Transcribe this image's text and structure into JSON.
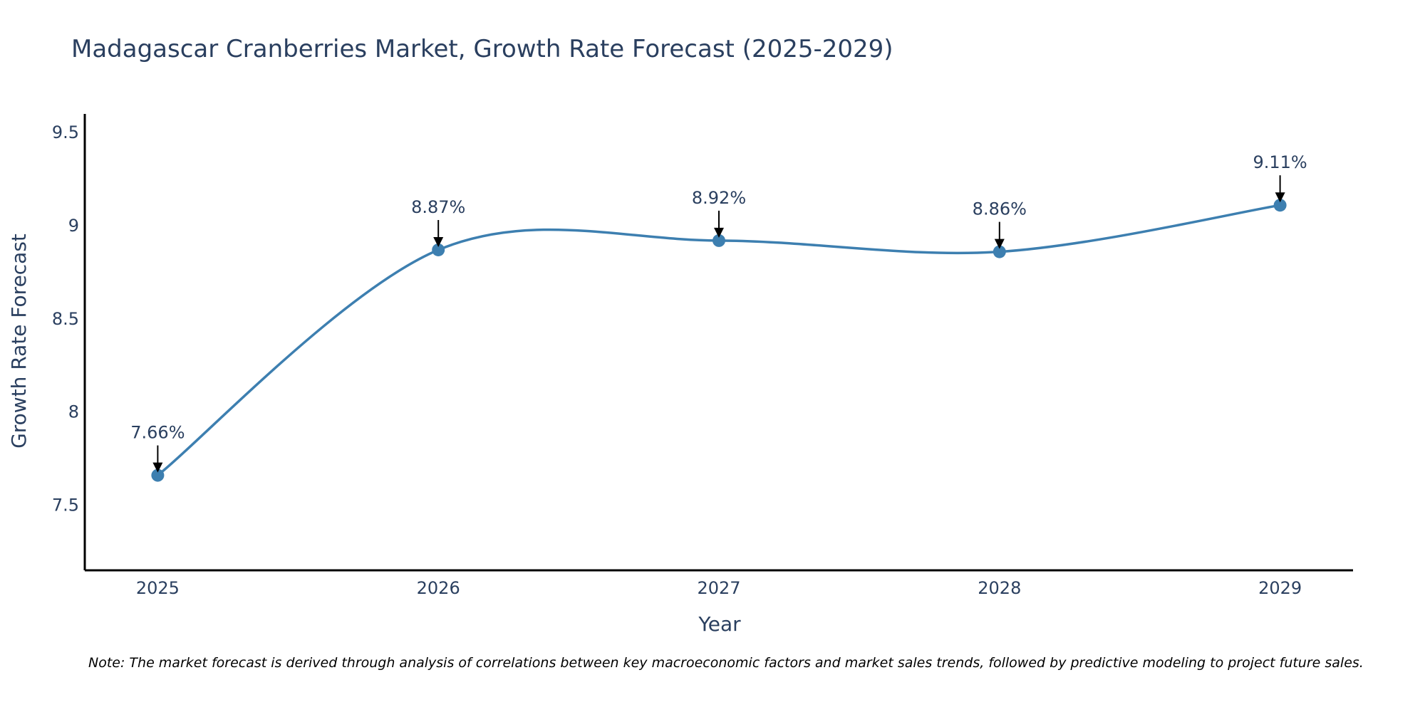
{
  "colors": {
    "line": "#3d7fb0",
    "marker": "#3d7fb0",
    "axis": "#000000",
    "text": "#2a3f5f"
  },
  "chart_data": {
    "type": "line",
    "title": "Madagascar Cranberries Market, Growth Rate Forecast (2025-2029)",
    "xlabel": "Year",
    "ylabel": "Growth Rate Forecast",
    "x": [
      2025,
      2026,
      2027,
      2028,
      2029
    ],
    "x_tick_labels": [
      "2025",
      "2026",
      "2027",
      "2028",
      "2029"
    ],
    "values": [
      7.66,
      8.87,
      8.92,
      8.86,
      9.11
    ],
    "data_labels": [
      "7.66%",
      "8.87%",
      "8.92%",
      "8.86%",
      "9.11%"
    ],
    "y_ticks": [
      7.5,
      8,
      8.5,
      9,
      9.5
    ],
    "y_tick_labels": [
      "7.5",
      "8",
      "8.5",
      "9",
      "9.5"
    ],
    "xlim": [
      2024.74,
      2029.26
    ],
    "ylim": [
      7.15,
      9.6
    ],
    "grid": false,
    "line_shape": "spline"
  },
  "note": "Note: The market forecast is derived through analysis of correlations between key macroeconomic factors and market sales trends, followed by predictive modeling to project future sales."
}
